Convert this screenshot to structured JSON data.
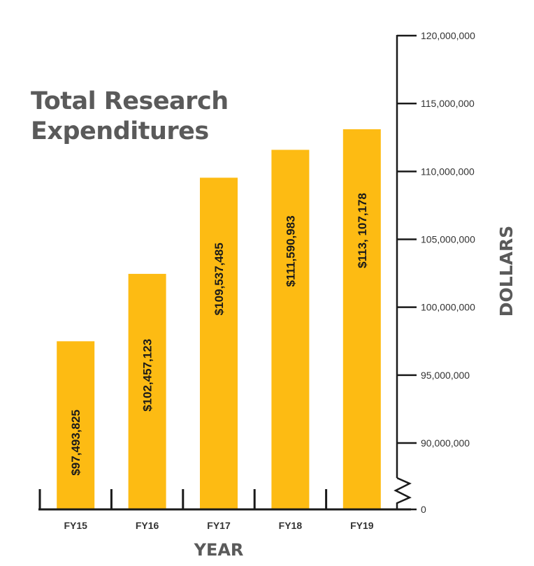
{
  "chart_data": {
    "type": "bar",
    "title": "Total Research Expenditures",
    "title_lines": [
      "Total Research",
      "Expenditures"
    ],
    "xlabel": "YEAR",
    "ylabel": "DOLLARS",
    "categories": [
      "FY15",
      "FY16",
      "FY17",
      "FY18",
      "FY19"
    ],
    "values": [
      97493825,
      102457123,
      109537485,
      111590983,
      113107178
    ],
    "value_labels": [
      "$97,493,825",
      "$102,457,123",
      "$109,537,485",
      "$111,590,983",
      "$113, 107,178"
    ],
    "ylim": [
      0,
      120000000
    ],
    "axis_break": [
      0,
      90000000
    ],
    "yticks": [
      0,
      90000000,
      95000000,
      100000000,
      105000000,
      110000000,
      115000000,
      120000000
    ],
    "ytick_labels": [
      "0",
      "90,000,000",
      "95,000,000",
      "100,000,000",
      "105,000,000",
      "110,000,000",
      "115,000,000",
      "120,000,000"
    ],
    "grid": false,
    "legend": "none",
    "bar_color": "#FDBB13",
    "axis_color": "#1a1a1a",
    "title_color": "#5a5a5a"
  }
}
